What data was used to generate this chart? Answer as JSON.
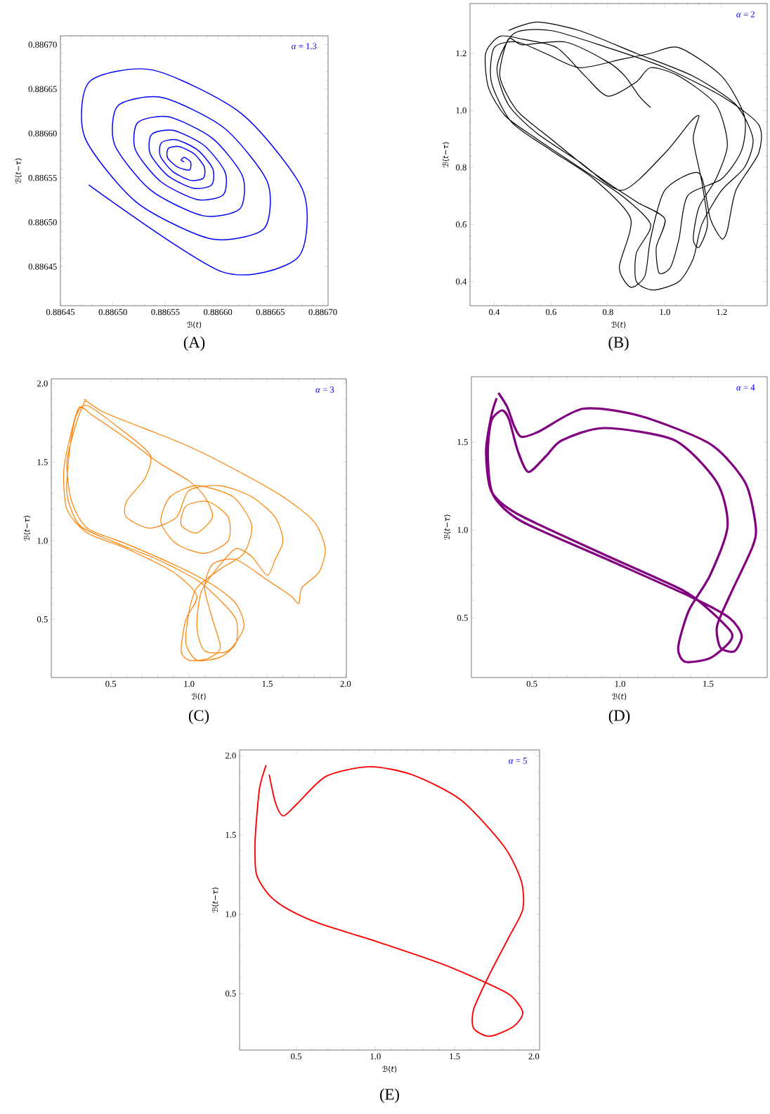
{
  "chart_data": [
    {
      "type": "line",
      "title": "(A)",
      "xlabel": "ℬ(*t*)",
      "ylabel": "ℬ(*t*−*τ*)",
      "annotations": [
        "*α* = 1.3"
      ],
      "xlim": [
        0.88645,
        0.886705
      ],
      "ylim": [
        0.886406,
        0.88671
      ],
      "xticks": [
        0.88645,
        {
          "value": 0.8865,
          "label": "0.88650"
        },
        0.88655,
        {
          "value": 0.8866,
          "label": "0.88660"
        },
        0.88665,
        {
          "value": 0.8867,
          "label": "0.88670"
        }
      ],
      "yticks": [
        0.88645,
        {
          "value": 0.8865,
          "label": "0.88650"
        },
        0.88655,
        {
          "value": 0.8866,
          "label": "0.88660"
        },
        0.88665,
        {
          "value": 0.8867,
          "label": "0.88670"
        }
      ],
      "series": [
        {
          "color": "#0000ff",
          "x": [
            0.886477,
            0.8866038,
            0.886676,
            0.8866812,
            0.8866224,
            0.886538,
            0.8864777,
            0.8864733,
            0.8865225,
            0.8865931,
            0.8866436,
            0.8866473,
            0.8866061,
            0.886547,
            0.8865048,
            0.8865017,
            0.8865361,
            0.8865856,
            0.8866209,
            0.8866235,
            0.8865947,
            0.8865533,
            0.8865237,
            0.8865215,
            0.8865457,
            0.8865803,
            0.8866051,
            0.8866068,
            0.8865867,
            0.8865577,
            0.886537,
            0.8865355,
            0.8865524,
            0.8865766,
            0.886594,
            0.8865952,
            0.8865811,
            0.8865608,
            0.8865463,
            0.8865452,
            0.8865571,
            0.886574,
            0.8865862,
            0.886587,
            0.8865772,
            0.886563,
            0.8865528,
            0.8865521,
            0.886562,
            0.886573,
            0.886574,
            0.886568,
            0.886565,
            0.886568
          ],
          "values": [
            0.886542,
            0.8864443,
            0.88646,
            0.8865352,
            0.8866224,
            0.8866715,
            0.8866583,
            0.8865955,
            0.8865225,
            0.8864814,
            0.8864924,
            0.886545,
            0.8866061,
            0.8866405,
            0.8866312,
            0.8865872,
            0.8865361,
            0.8865074,
            0.8865151,
            0.8865519,
            0.8865947,
            0.8866187,
            0.8866123,
            0.8865815,
            0.8865457,
            0.8865256,
            0.8865309,
            0.8865567,
            0.8865867,
            0.8866035,
            0.886599,
            0.8865774,
            0.8865524,
            0.8865384,
            0.886542,
            0.8865601,
            0.8865811,
            0.8865928,
            0.8865897,
            0.8865746,
            0.8865571,
            0.8865472,
            0.8865498,
            0.8865625,
            0.8865772,
            0.8865853,
            0.8865832,
            0.8865726,
            0.886562,
            0.886559,
            0.886568,
            0.886573,
            0.88657,
            0.886568
          ]
        }
      ]
    },
    {
      "type": "line",
      "title": "(B)",
      "xlabel": "ℬ(*t*)",
      "ylabel": "ℬ(*t*−*τ*)",
      "annotations": [
        "*α* = 2"
      ],
      "xlim": [
        0.315,
        1.36
      ],
      "ylim": [
        0.315,
        1.375
      ],
      "xticks": [
        0.4,
        0.6,
        0.8,
        {
          "value": 1,
          "label": "1.0"
        },
        1.2
      ],
      "yticks": [
        0.4,
        0.6,
        0.8,
        {
          "value": 1,
          "label": "1.0"
        },
        1.2
      ],
      "series": [
        {
          "color": "#000000",
          "x": [
            0.45,
            0.55,
            0.7,
            0.9,
            1.1,
            1.25,
            1.31,
            1.28,
            1.2,
            1.13,
            1.1,
            1.05,
            0.96,
            0.9,
            0.9,
            0.95,
            0.85,
            0.7,
            0.55,
            0.44,
            0.38,
            0.37,
            0.42,
            0.5,
            0.62,
            0.72,
            0.8,
            0.9,
            0.95,
            1.05,
            1.18,
            1.22,
            1.18,
            1.12,
            1.1,
            1.12,
            1.15,
            1.13,
            1.1,
            1.12,
            1.09,
            1.0,
            0.85,
            0.7,
            0.55,
            0.45,
            0.41,
            0.47,
            0.6,
            0.8,
            1.0,
            1.2,
            1.33,
            1.33,
            1.25,
            1.22,
            1.2,
            1.16,
            1.12,
            1.0,
            0.95,
            0.93,
            0.88,
            0.84,
            0.88,
            0.75,
            0.6,
            0.46,
            0.39,
            0.4,
            0.48,
            0.58,
            0.7,
            0.85,
            0.95,
            1.05,
            1.2,
            1.28,
            1.27,
            1.2,
            1.08,
            1.05,
            1.02,
            0.98,
            0.97,
            1.0,
            0.9,
            0.75,
            0.6,
            0.48,
            0.42,
            0.45,
            0.5,
            0.65,
            0.8,
            0.86,
            0.91,
            0.95
          ],
          "values": [
            1.28,
            1.31,
            1.28,
            1.2,
            1.12,
            1.02,
            0.9,
            0.8,
            0.72,
            0.6,
            0.48,
            0.4,
            0.37,
            0.4,
            0.5,
            0.6,
            0.7,
            0.8,
            0.9,
            0.98,
            1.08,
            1.2,
            1.26,
            1.25,
            1.22,
            1.12,
            1.05,
            1.1,
            1.15,
            1.12,
            1.02,
            0.88,
            0.76,
            0.66,
            0.55,
            0.52,
            0.6,
            0.75,
            0.9,
            0.98,
            0.96,
            0.85,
            0.72,
            0.82,
            0.92,
            1.02,
            1.15,
            1.27,
            1.28,
            1.22,
            1.15,
            1.05,
            0.95,
            0.85,
            0.72,
            0.58,
            0.55,
            0.62,
            0.78,
            0.72,
            0.55,
            0.42,
            0.38,
            0.45,
            0.62,
            0.76,
            0.86,
            0.96,
            1.1,
            1.22,
            1.24,
            1.2,
            1.15,
            1.18,
            1.2,
            1.22,
            1.12,
            0.98,
            0.86,
            0.76,
            0.7,
            0.55,
            0.45,
            0.43,
            0.52,
            0.62,
            0.68,
            0.78,
            0.9,
            1.0,
            1.12,
            1.25,
            1.23,
            1.24,
            1.17,
            1.12,
            1.05,
            1.01
          ]
        }
      ]
    },
    {
      "type": "line",
      "title": "(C)",
      "xlabel": "ℬ(*t*)",
      "ylabel": "ℬ(*t*−*τ*)",
      "annotations": [
        "*α* = 3"
      ],
      "xlim": [
        0.12,
        2.005
      ],
      "ylim": [
        0.13,
        2.03
      ],
      "xticks": [
        0.5,
        {
          "value": 1,
          "label": "1.0"
        },
        1.5,
        {
          "value": 2,
          "label": "2.0"
        }
      ],
      "yticks": [
        0.5,
        {
          "value": 1,
          "label": "1.0"
        },
        1.5,
        {
          "value": 2,
          "label": "2.0"
        }
      ],
      "series": [
        {
          "color": "#ff8000",
          "x": [
            0.33,
            0.45,
            0.7,
            1.0,
            1.3,
            1.6,
            1.8,
            1.87,
            1.83,
            1.72,
            1.7,
            1.65,
            1.5,
            1.3,
            1.15,
            1.1,
            1.15,
            1.2,
            1.12,
            1.0,
            0.95,
            0.98,
            1.05,
            0.9,
            0.6,
            0.35,
            0.22,
            0.2,
            0.25,
            0.3,
            0.38,
            0.6,
            0.8,
            1.0,
            1.1,
            1.15,
            1.05,
            0.95,
            0.98,
            1.12,
            1.25,
            1.25,
            1.1,
            0.92,
            0.82,
            0.88,
            1.05,
            1.28,
            1.4,
            1.35,
            1.2,
            1.05,
            1.0,
            0.98,
            1.05,
            1.2,
            1.3,
            1.3,
            1.2,
            1.05,
            0.8,
            0.5,
            0.3,
            0.22,
            0.24,
            0.28,
            0.35,
            0.55,
            0.75,
            0.72,
            0.6,
            0.6,
            0.75,
            0.92,
            1.0,
            1.2,
            1.4,
            1.55,
            1.6,
            1.55,
            1.5,
            1.4,
            1.3,
            1.2,
            1.08,
            1.05,
            1.1,
            1.25,
            1.35,
            1.3,
            1.15,
            0.9,
            0.6,
            0.35,
            0.25,
            0.22,
            0.28,
            0.34
          ],
          "values": [
            1.9,
            1.82,
            1.72,
            1.6,
            1.45,
            1.28,
            1.12,
            0.95,
            0.8,
            0.7,
            0.6,
            0.65,
            0.75,
            0.88,
            0.85,
            0.7,
            0.5,
            0.32,
            0.25,
            0.24,
            0.3,
            0.5,
            0.65,
            0.8,
            0.95,
            1.05,
            1.2,
            1.45,
            1.7,
            1.85,
            1.8,
            1.65,
            1.5,
            1.38,
            1.28,
            1.15,
            1.05,
            1.1,
            1.22,
            1.25,
            1.15,
            1.0,
            0.92,
            0.98,
            1.12,
            1.28,
            1.35,
            1.28,
            1.1,
            0.92,
            0.82,
            0.7,
            0.55,
            0.35,
            0.24,
            0.26,
            0.35,
            0.5,
            0.62,
            0.75,
            0.88,
            1.0,
            1.1,
            1.3,
            1.6,
            1.8,
            1.86,
            1.72,
            1.55,
            1.4,
            1.25,
            1.15,
            1.08,
            1.15,
            1.32,
            1.35,
            1.28,
            1.15,
            1.0,
            0.88,
            0.78,
            0.9,
            0.95,
            0.85,
            0.68,
            0.45,
            0.3,
            0.3,
            0.45,
            0.6,
            0.72,
            0.85,
            0.98,
            1.08,
            1.25,
            1.5,
            1.75,
            1.9
          ]
        }
      ]
    },
    {
      "type": "line",
      "title": "(D)",
      "xlabel": "ℬ(*t*)",
      "ylabel": "ℬ(*t*−*τ*)",
      "annotations": [
        "*α* = 4"
      ],
      "xlim": [
        0.157,
        1.835
      ],
      "ylim": [
        0.16,
        1.872
      ],
      "xticks": [
        0.5,
        {
          "value": 1,
          "label": "1.0"
        },
        1.5
      ],
      "yticks": [
        0.5,
        {
          "value": 1,
          "label": "1.0"
        },
        1.5
      ],
      "series": [
        {
          "color": "#800080",
          "x": [
            0.31,
            0.36,
            0.4,
            0.44,
            0.54,
            0.79,
            1.11,
            1.51,
            1.71,
            1.77,
            1.75,
            1.62,
            1.55,
            1.57,
            1.65,
            1.69,
            1.62,
            1.4,
            0.91,
            0.44,
            0.28,
            0.25,
            0.27,
            0.33,
            0.37,
            0.42,
            0.48,
            0.58,
            0.67,
            0.91,
            1.31,
            1.55,
            1.61,
            1.51,
            1.39,
            1.33,
            1.37,
            1.51,
            1.62,
            1.63,
            1.5,
            1.35,
            0.91,
            0.42,
            0.27,
            0.24,
            0.27,
            0.3
          ],
          "values": [
            1.78,
            1.7,
            1.59,
            1.53,
            1.56,
            1.69,
            1.65,
            1.49,
            1.27,
            1.02,
            0.9,
            0.62,
            0.45,
            0.33,
            0.31,
            0.4,
            0.5,
            0.62,
            0.84,
            1.05,
            1.2,
            1.43,
            1.62,
            1.68,
            1.63,
            1.45,
            1.33,
            1.42,
            1.51,
            1.58,
            1.51,
            1.27,
            1.02,
            0.74,
            0.54,
            0.33,
            0.25,
            0.27,
            0.36,
            0.42,
            0.55,
            0.66,
            0.86,
            1.09,
            1.22,
            1.45,
            1.65,
            1.75
          ]
        }
      ]
    },
    {
      "type": "line",
      "title": "(E)",
      "xlabel": "ℬ(*t*)",
      "ylabel": "ℬ(*t*−*τ*)",
      "annotations": [
        "*α* = 5"
      ],
      "xlim": [
        0.143,
        2.036
      ],
      "ylim": [
        0.143,
        2.036
      ],
      "xticks": [
        0.5,
        {
          "value": 1,
          "label": "1.0"
        },
        1.5,
        {
          "value": 2,
          "label": "2.0"
        }
      ],
      "yticks": [
        0.5,
        {
          "value": 1,
          "label": "1.0"
        },
        1.5,
        {
          "value": 2,
          "label": "2.0"
        }
      ],
      "series": [
        {
          "color": "#ff0000",
          "x": [
            0.31,
            0.27,
            0.25,
            0.24,
            0.25,
            0.33,
            0.45,
            0.65,
            1.0,
            1.41,
            1.67,
            1.85,
            1.93,
            1.87,
            1.72,
            1.62,
            1.62,
            1.72,
            1.84,
            1.93,
            1.92,
            1.81,
            1.54,
            1.23,
            0.96,
            0.69,
            0.51,
            0.42,
            0.37,
            0.33
          ],
          "values": [
            1.94,
            1.8,
            1.6,
            1.43,
            1.25,
            1.12,
            1.03,
            0.94,
            0.83,
            0.69,
            0.58,
            0.49,
            0.38,
            0.29,
            0.23,
            0.28,
            0.4,
            0.62,
            0.85,
            1.03,
            1.21,
            1.43,
            1.72,
            1.88,
            1.93,
            1.87,
            1.7,
            1.62,
            1.7,
            1.88
          ]
        }
      ]
    }
  ]
}
